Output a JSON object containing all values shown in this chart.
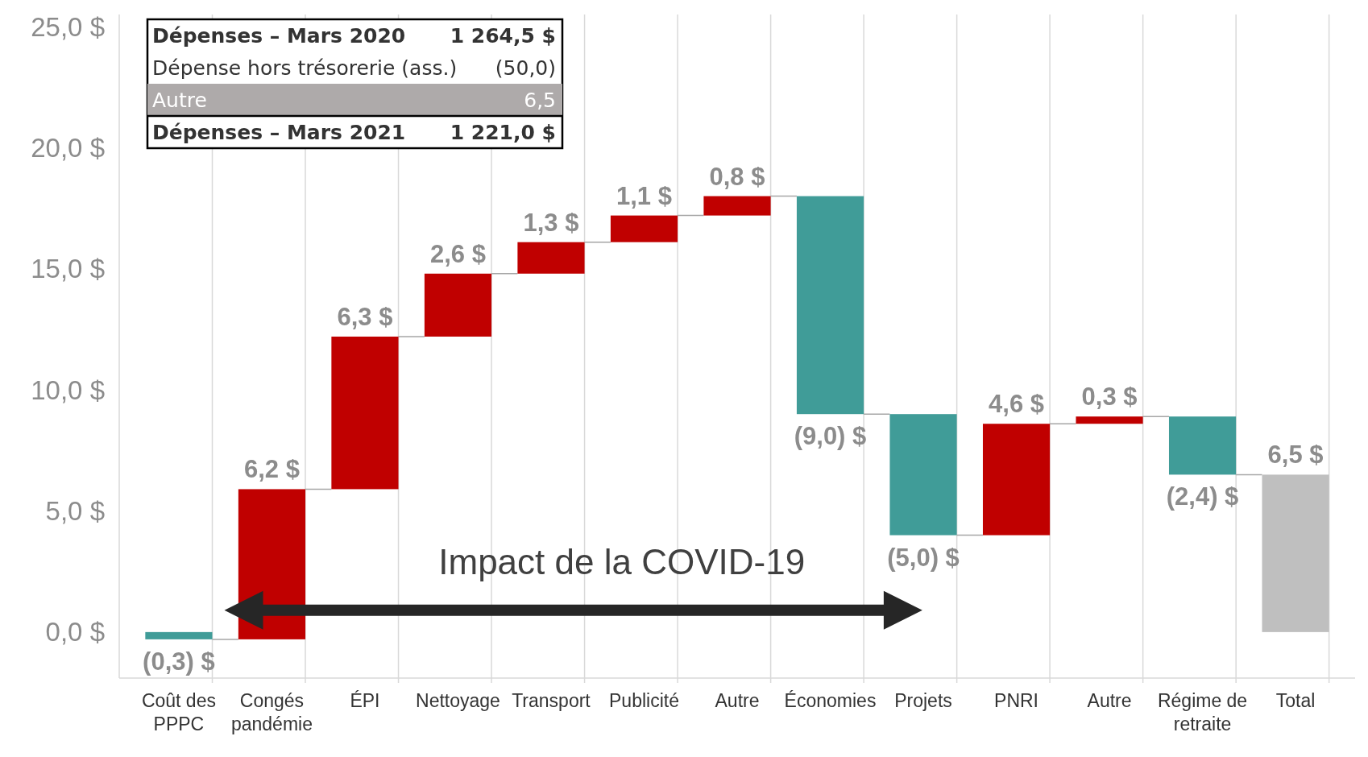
{
  "chart_data": {
    "type": "bar",
    "categories": [
      "Coût des PPPC",
      "Congés pandémie",
      "ÉPI",
      "Nettoyage",
      "Transport",
      "Publicité",
      "Autre",
      "Économies",
      "Projets",
      "PNRI",
      "Autre",
      "Régime de retraite",
      "Total"
    ],
    "values": [
      -0.3,
      6.2,
      6.3,
      2.6,
      1.3,
      1.1,
      0.8,
      -9.0,
      -5.0,
      4.6,
      0.3,
      -2.4,
      6.5
    ],
    "base": [
      0,
      -0.3,
      5.9,
      12.2,
      14.8,
      16.1,
      17.2,
      18.0,
      9.0,
      4.0,
      8.6,
      8.9,
      0
    ],
    "colors": [
      "#409c98",
      "#c00000",
      "#c00000",
      "#c00000",
      "#c00000",
      "#c00000",
      "#c00000",
      "#409c98",
      "#409c98",
      "#c00000",
      "#c00000",
      "#409c98",
      "#bfbfbf"
    ],
    "value_labels": [
      "(0,3) $",
      "6,2 $",
      "6,3 $",
      "2,6 $",
      "1,3 $",
      "1,1 $",
      "0,8 $",
      "(9,0) $",
      "(5,0) $",
      "4,6 $",
      "0,3 $",
      "(2,4) $",
      "6,5 $"
    ],
    "ylim": [
      -1.9,
      25.5
    ],
    "yticks": [
      {
        "value": 0,
        "label": "0,0 $"
      },
      {
        "value": 5,
        "label": "5,0 $"
      },
      {
        "value": 10,
        "label": "10,0 $"
      },
      {
        "value": 15,
        "label": "15,0 $"
      },
      {
        "value": 20,
        "label": "20,0 $"
      },
      {
        "value": 25,
        "label": "25,0 $"
      }
    ],
    "grid": "x",
    "annotations": [
      "Impact de la COVID-19",
      "Dépenses – Mars 2020",
      "1 264,5 $",
      "Dépense hors trésorerie (ass.)",
      "(50,0)",
      "Autre",
      "6,5",
      "Dépenses – Mars 2021",
      "1 221,0 $"
    ]
  }
}
